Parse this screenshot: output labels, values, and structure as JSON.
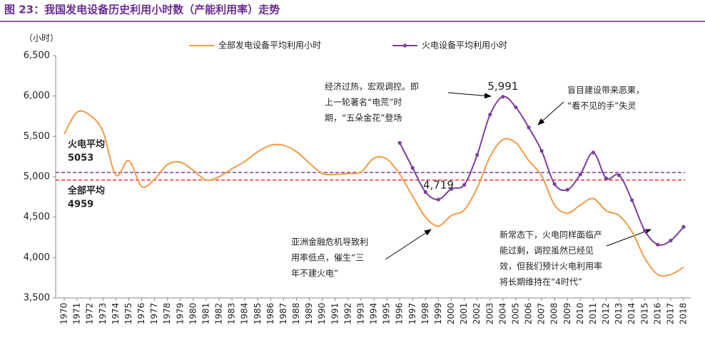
{
  "chart_data": {
    "type": "line",
    "title": "图 23：我国发电设备历史利用小时数（产能利用率）走势",
    "y_label": "（小时）",
    "categories": [
      "1970",
      "1971",
      "1972",
      "1973",
      "1974",
      "1975",
      "1976",
      "1977",
      "1978",
      "1979",
      "1980",
      "1981",
      "1982",
      "1983",
      "1984",
      "1985",
      "1986",
      "1987",
      "1988",
      "1989",
      "1990",
      "1991",
      "1992",
      "1993",
      "1994",
      "1995",
      "1996",
      "1997",
      "1998",
      "1999",
      "2000",
      "2001",
      "2002",
      "2003",
      "2004",
      "2005",
      "2006",
      "2007",
      "2008",
      "2009",
      "2010",
      "2011",
      "2012",
      "2013",
      "2014",
      "2015",
      "2016",
      "2017",
      "2018"
    ],
    "series": [
      {
        "name": "全部发电设备平均利用小时",
        "color": "#f39a45",
        "markers": false,
        "values": [
          5530,
          5800,
          5760,
          5560,
          5020,
          5200,
          4880,
          4970,
          5150,
          5180,
          5080,
          4960,
          5000,
          5100,
          5190,
          5310,
          5390,
          5390,
          5310,
          5170,
          5040,
          5030,
          5040,
          5060,
          5230,
          5220,
          5030,
          4760,
          4500,
          4390,
          4520,
          4590,
          4860,
          5250,
          5460,
          5420,
          5200,
          5010,
          4650,
          4550,
          4650,
          4730,
          4580,
          4520,
          4320,
          3990,
          3790,
          3790,
          3880
        ]
      },
      {
        "name": "火电设备平均利用小时",
        "color": "#7b3f9e",
        "markers": true,
        "values": [
          null,
          null,
          null,
          null,
          null,
          null,
          null,
          null,
          null,
          null,
          null,
          null,
          null,
          null,
          null,
          null,
          null,
          null,
          null,
          null,
          null,
          null,
          null,
          null,
          null,
          null,
          5420,
          5110,
          4810,
          4719,
          4850,
          4900,
          5270,
          5770,
          5991,
          5860,
          5610,
          5320,
          4910,
          4840,
          5030,
          5300,
          4980,
          5020,
          4710,
          4330,
          4160,
          4210,
          4380
        ],
        "value_labels": [
          null,
          null,
          null,
          null,
          null,
          null,
          null,
          null,
          null,
          null,
          null,
          null,
          null,
          null,
          null,
          null,
          null,
          null,
          null,
          null,
          null,
          null,
          null,
          null,
          null,
          null,
          null,
          null,
          null,
          "4,719",
          null,
          null,
          null,
          null,
          "5,991",
          null,
          null,
          null,
          null,
          null,
          null,
          null,
          null,
          null,
          null,
          null,
          null,
          null,
          null
        ]
      }
    ],
    "reference_lines": [
      {
        "label": "火电平均",
        "value": 5053,
        "color": "#7b3f9e"
      },
      {
        "label": "全部平均",
        "value": 4959,
        "color": "#e8302a"
      }
    ],
    "ylim": [
      3500,
      6500
    ],
    "yticks": [
      {
        "value": 3500,
        "label": "3,500"
      },
      {
        "value": 4000,
        "label": "4,000"
      },
      {
        "value": 4500,
        "label": "4,500"
      },
      {
        "value": 5000,
        "label": "5,000"
      },
      {
        "value": 5500,
        "label": "5,500"
      },
      {
        "value": 6000,
        "label": "6,000"
      },
      {
        "value": 6500,
        "label": "6,500"
      }
    ],
    "annotations": [
      {
        "lines": [
          "经济过热，宏观调控。即",
          "上一轮著名“电荒”时",
          "期，“五朵金花”登场"
        ]
      },
      {
        "lines": [
          "盲目建设带来恶果，",
          "“看不见的手”失灵"
        ]
      },
      {
        "lines": [
          "亚洲金融危机导致利",
          "用率低点，催生“三",
          "年不建火电”"
        ]
      },
      {
        "lines": [
          "新常态下，火电同样面临产",
          "能过剩，调控虽然已经见",
          "效，但我们预计火电利用率",
          "将长期维持在“4时代”"
        ]
      }
    ]
  }
}
